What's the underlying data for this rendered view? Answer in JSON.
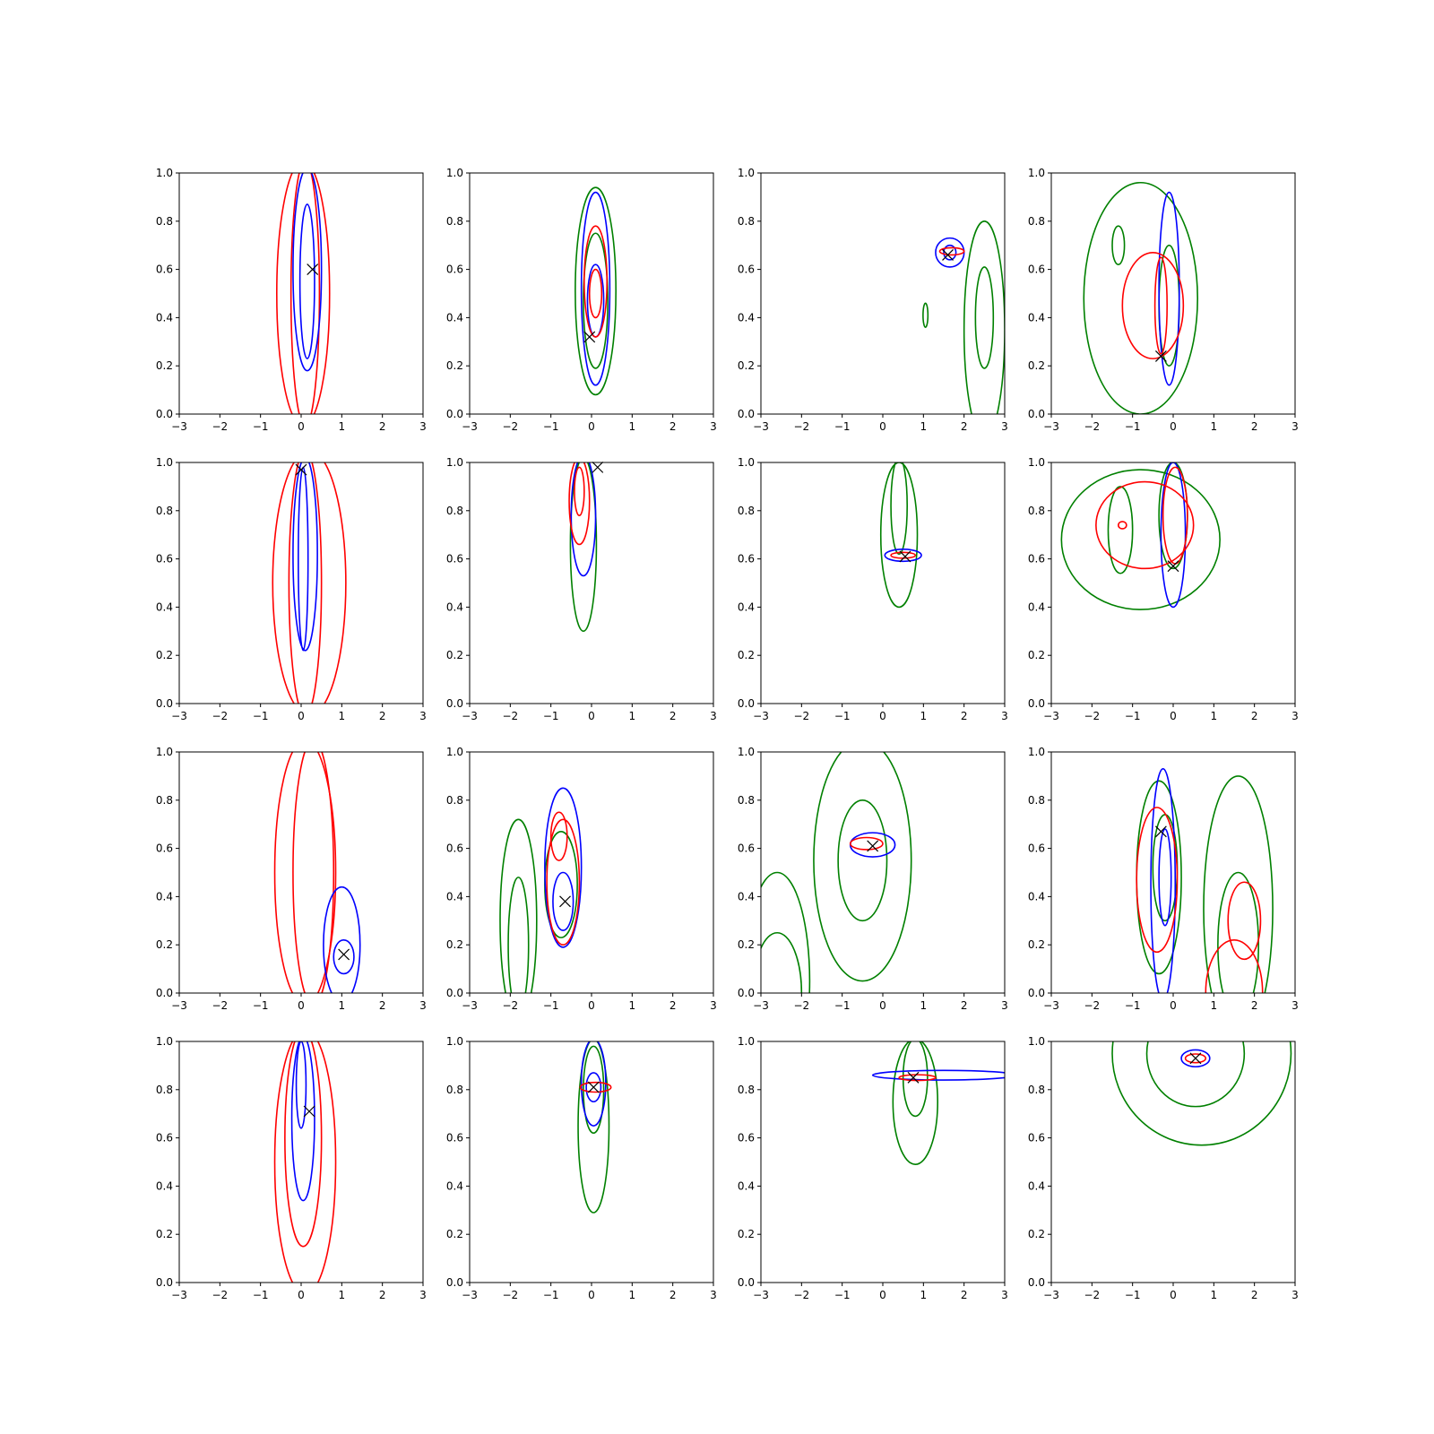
{
  "chart_data": {
    "type": "contour_grid",
    "rows": 4,
    "cols": 4,
    "xlim": [
      -3,
      3
    ],
    "ylim": [
      0.0,
      1.0
    ],
    "xticks": [
      "−3",
      "−2",
      "−1",
      "0",
      "1",
      "2",
      "3"
    ],
    "yticks": [
      "0.0",
      "0.2",
      "0.4",
      "0.6",
      "0.8",
      "1.0"
    ],
    "colors": {
      "red": "#ff0000",
      "blue": "#0000ff",
      "green": "#008000",
      "marker": "#000000"
    },
    "panels": [
      {
        "id": "r1c1",
        "marker": [
          0.28,
          0.6
        ],
        "contours": [
          {
            "color": "red",
            "c": [
              0.05,
              0.5
            ],
            "r": [
              0.65,
              0.55
            ]
          },
          {
            "color": "red",
            "c": [
              0.1,
              0.5
            ],
            "r": [
              0.35,
              0.55
            ]
          },
          {
            "color": "blue",
            "c": [
              0.15,
              0.6
            ],
            "r": [
              0.35,
              0.42
            ]
          },
          {
            "color": "blue",
            "c": [
              0.15,
              0.55
            ],
            "r": [
              0.18,
              0.32
            ]
          }
        ]
      },
      {
        "id": "r1c2",
        "marker": [
          -0.05,
          0.32
        ],
        "contours": [
          {
            "color": "green",
            "c": [
              0.1,
              0.51
            ],
            "r": [
              0.5,
              0.43
            ]
          },
          {
            "color": "green",
            "c": [
              0.1,
              0.47
            ],
            "r": [
              0.3,
              0.28
            ]
          },
          {
            "color": "blue",
            "c": [
              0.1,
              0.52
            ],
            "r": [
              0.35,
              0.4
            ]
          },
          {
            "color": "blue",
            "c": [
              0.1,
              0.47
            ],
            "r": [
              0.2,
              0.15
            ]
          },
          {
            "color": "red",
            "c": [
              0.1,
              0.55
            ],
            "r": [
              0.28,
              0.23
            ]
          },
          {
            "color": "red",
            "c": [
              0.1,
              0.5
            ],
            "r": [
              0.15,
              0.1
            ]
          }
        ]
      },
      {
        "id": "r1c3",
        "marker": [
          1.6,
          0.66
        ],
        "contours": [
          {
            "color": "green",
            "c": [
              2.5,
              0.35
            ],
            "r": [
              0.5,
              0.45
            ]
          },
          {
            "color": "green",
            "c": [
              2.5,
              0.4
            ],
            "r": [
              0.22,
              0.21
            ]
          },
          {
            "color": "green",
            "c": [
              1.05,
              0.41
            ],
            "r": [
              0.06,
              0.05
            ]
          },
          {
            "color": "blue",
            "c": [
              1.65,
              0.67
            ],
            "r": [
              0.35,
              0.06
            ]
          },
          {
            "color": "blue",
            "c": [
              1.65,
              0.67
            ],
            "r": [
              0.15,
              0.03
            ]
          },
          {
            "color": "red",
            "c": [
              1.7,
              0.675
            ],
            "r": [
              0.3,
              0.015
            ]
          }
        ]
      },
      {
        "id": "r1c4",
        "marker": [
          -0.3,
          0.24
        ],
        "contours": [
          {
            "color": "green",
            "c": [
              -0.8,
              0.48
            ],
            "r": [
              1.4,
              0.48
            ]
          },
          {
            "color": "green",
            "c": [
              -1.35,
              0.7
            ],
            "r": [
              0.15,
              0.08
            ]
          },
          {
            "color": "green",
            "c": [
              -0.1,
              0.45
            ],
            "r": [
              0.25,
              0.25
            ]
          },
          {
            "color": "blue",
            "c": [
              -0.1,
              0.52
            ],
            "r": [
              0.25,
              0.4
            ]
          },
          {
            "color": "red",
            "c": [
              -0.5,
              0.45
            ],
            "r": [
              0.75,
              0.22
            ]
          },
          {
            "color": "red",
            "c": [
              -0.3,
              0.45
            ],
            "r": [
              0.15,
              0.2
            ]
          }
        ]
      },
      {
        "id": "r2c1",
        "marker": [
          0.0,
          0.97
        ],
        "contours": [
          {
            "color": "red",
            "c": [
              0.2,
              0.5
            ],
            "r": [
              0.9,
              0.55
            ]
          },
          {
            "color": "red",
            "c": [
              0.1,
              0.5
            ],
            "r": [
              0.4,
              0.55
            ]
          },
          {
            "color": "blue",
            "c": [
              0.1,
              0.62
            ],
            "r": [
              0.3,
              0.4
            ]
          },
          {
            "color": "blue",
            "c": [
              0.05,
              0.6
            ],
            "r": [
              0.12,
              0.38
            ]
          }
        ]
      },
      {
        "id": "r2c2",
        "marker": [
          0.15,
          0.98
        ],
        "contours": [
          {
            "color": "green",
            "c": [
              -0.2,
              0.66
            ],
            "r": [
              0.32,
              0.36
            ]
          },
          {
            "color": "blue",
            "c": [
              -0.2,
              0.78
            ],
            "r": [
              0.3,
              0.25
            ]
          },
          {
            "color": "red",
            "c": [
              -0.3,
              0.84
            ],
            "r": [
              0.25,
              0.18
            ]
          },
          {
            "color": "red",
            "c": [
              -0.3,
              0.88
            ],
            "r": [
              0.12,
              0.1
            ]
          }
        ]
      },
      {
        "id": "r2c3",
        "marker": [
          0.55,
          0.61
        ],
        "contours": [
          {
            "color": "green",
            "c": [
              0.4,
              0.7
            ],
            "r": [
              0.45,
              0.3
            ]
          },
          {
            "color": "green",
            "c": [
              0.4,
              0.82
            ],
            "r": [
              0.2,
              0.2
            ]
          },
          {
            "color": "blue",
            "c": [
              0.5,
              0.615
            ],
            "r": [
              0.45,
              0.025
            ]
          },
          {
            "color": "red",
            "c": [
              0.5,
              0.615
            ],
            "r": [
              0.3,
              0.012
            ]
          }
        ]
      },
      {
        "id": "r2c4",
        "marker": [
          0.0,
          0.57
        ],
        "contours": [
          {
            "color": "green",
            "c": [
              -0.8,
              0.68
            ],
            "r": [
              1.95,
              0.29
            ]
          },
          {
            "color": "green",
            "c": [
              -1.3,
              0.72
            ],
            "r": [
              0.3,
              0.18
            ]
          },
          {
            "color": "green",
            "c": [
              0.0,
              0.78
            ],
            "r": [
              0.35,
              0.22
            ]
          },
          {
            "color": "blue",
            "c": [
              0.0,
              0.7
            ],
            "r": [
              0.3,
              0.3
            ]
          },
          {
            "color": "red",
            "c": [
              -0.7,
              0.74
            ],
            "r": [
              1.2,
              0.18
            ]
          },
          {
            "color": "red",
            "c": [
              -1.25,
              0.74
            ],
            "r": [
              0.1,
              0.015
            ]
          },
          {
            "color": "red",
            "c": [
              0.05,
              0.78
            ],
            "r": [
              0.3,
              0.2
            ]
          }
        ]
      },
      {
        "id": "r3c1",
        "marker": [
          1.05,
          0.16
        ],
        "contours": [
          {
            "color": "red",
            "c": [
              0.1,
              0.5
            ],
            "r": [
              0.75,
              0.55
            ]
          },
          {
            "color": "red",
            "c": [
              0.3,
              0.5
            ],
            "r": [
              0.5,
              0.55
            ]
          },
          {
            "color": "blue",
            "c": [
              1.0,
              0.2
            ],
            "r": [
              0.45,
              0.24
            ]
          },
          {
            "color": "blue",
            "c": [
              1.05,
              0.15
            ],
            "r": [
              0.25,
              0.07
            ]
          }
        ]
      },
      {
        "id": "r3c2",
        "marker": [
          -0.65,
          0.38
        ],
        "contours": [
          {
            "color": "green",
            "c": [
              -1.8,
              0.3
            ],
            "r": [
              0.45,
              0.42
            ]
          },
          {
            "color": "green",
            "c": [
              -1.8,
              0.2
            ],
            "r": [
              0.25,
              0.28
            ]
          },
          {
            "color": "green",
            "c": [
              -0.75,
              0.45
            ],
            "r": [
              0.4,
              0.22
            ]
          },
          {
            "color": "blue",
            "c": [
              -0.7,
              0.52
            ],
            "r": [
              0.45,
              0.33
            ]
          },
          {
            "color": "blue",
            "c": [
              -0.7,
              0.38
            ],
            "r": [
              0.25,
              0.12
            ]
          },
          {
            "color": "red",
            "c": [
              -0.7,
              0.46
            ],
            "r": [
              0.4,
              0.26
            ]
          },
          {
            "color": "red",
            "c": [
              -0.8,
              0.65
            ],
            "r": [
              0.2,
              0.1
            ]
          }
        ]
      },
      {
        "id": "r3c3",
        "marker": [
          -0.25,
          0.61
        ],
        "contours": [
          {
            "color": "green",
            "c": [
              -0.5,
              0.55
            ],
            "r": [
              1.2,
              0.5
            ]
          },
          {
            "color": "green",
            "c": [
              -0.5,
              0.55
            ],
            "r": [
              0.6,
              0.25
            ]
          },
          {
            "color": "green",
            "c": [
              -2.6,
              0.05
            ],
            "r": [
              0.8,
              0.45
            ]
          },
          {
            "color": "green",
            "c": [
              -2.6,
              0.0
            ],
            "r": [
              0.6,
              0.25
            ]
          },
          {
            "color": "blue",
            "c": [
              -0.25,
              0.615
            ],
            "r": [
              0.55,
              0.05
            ]
          },
          {
            "color": "red",
            "c": [
              -0.4,
              0.62
            ],
            "r": [
              0.4,
              0.025
            ]
          }
        ]
      },
      {
        "id": "r3c4",
        "marker": [
          -0.3,
          0.67
        ],
        "contours": [
          {
            "color": "green",
            "c": [
              -0.35,
              0.48
            ],
            "r": [
              0.55,
              0.4
            ]
          },
          {
            "color": "green",
            "c": [
              -0.2,
              0.52
            ],
            "r": [
              0.3,
              0.22
            ]
          },
          {
            "color": "green",
            "c": [
              1.6,
              0.35
            ],
            "r": [
              0.85,
              0.55
            ]
          },
          {
            "color": "green",
            "c": [
              1.6,
              0.2
            ],
            "r": [
              0.5,
              0.3
            ]
          },
          {
            "color": "blue",
            "c": [
              -0.25,
              0.45
            ],
            "r": [
              0.3,
              0.48
            ]
          },
          {
            "color": "blue",
            "c": [
              -0.2,
              0.48
            ],
            "r": [
              0.15,
              0.2
            ]
          },
          {
            "color": "red",
            "c": [
              -0.4,
              0.47
            ],
            "r": [
              0.5,
              0.3
            ]
          },
          {
            "color": "red",
            "c": [
              1.75,
              0.3
            ],
            "r": [
              0.4,
              0.16
            ]
          },
          {
            "color": "red",
            "c": [
              1.5,
              0.0
            ],
            "r": [
              0.7,
              0.22
            ]
          }
        ]
      },
      {
        "id": "r4c1",
        "marker": [
          0.2,
          0.71
        ],
        "contours": [
          {
            "color": "red",
            "c": [
              0.1,
              0.5
            ],
            "r": [
              0.75,
              0.55
            ]
          },
          {
            "color": "red",
            "c": [
              0.05,
              0.6
            ],
            "r": [
              0.45,
              0.45
            ]
          },
          {
            "color": "blue",
            "c": [
              0.05,
              0.68
            ],
            "r": [
              0.28,
              0.34
            ]
          },
          {
            "color": "blue",
            "c": [
              0.0,
              0.82
            ],
            "r": [
              0.12,
              0.18
            ]
          }
        ]
      },
      {
        "id": "r4c2",
        "marker": [
          0.05,
          0.81
        ],
        "contours": [
          {
            "color": "green",
            "c": [
              0.05,
              0.65
            ],
            "r": [
              0.38,
              0.36
            ]
          },
          {
            "color": "green",
            "c": [
              0.05,
              0.8
            ],
            "r": [
              0.25,
              0.18
            ]
          },
          {
            "color": "blue",
            "c": [
              0.05,
              0.83
            ],
            "r": [
              0.3,
              0.18
            ]
          },
          {
            "color": "blue",
            "c": [
              0.05,
              0.81
            ],
            "r": [
              0.18,
              0.06
            ]
          },
          {
            "color": "red",
            "c": [
              0.1,
              0.81
            ],
            "r": [
              0.38,
              0.02
            ]
          }
        ]
      },
      {
        "id": "r4c3",
        "marker": [
          0.75,
          0.85
        ],
        "contours": [
          {
            "color": "green",
            "c": [
              0.8,
              0.75
            ],
            "r": [
              0.55,
              0.26
            ]
          },
          {
            "color": "green",
            "c": [
              0.8,
              0.85
            ],
            "r": [
              0.3,
              0.16
            ]
          },
          {
            "color": "blue",
            "c": [
              1.5,
              0.86
            ],
            "r": [
              1.75,
              0.02
            ]
          },
          {
            "color": "red",
            "c": [
              0.85,
              0.85
            ],
            "r": [
              0.45,
              0.012
            ]
          }
        ]
      },
      {
        "id": "r4c4",
        "marker": [
          0.55,
          0.93
        ],
        "contours": [
          {
            "color": "green",
            "c": [
              0.7,
              0.95
            ],
            "r": [
              2.2,
              0.38
            ]
          },
          {
            "color": "green",
            "c": [
              0.55,
              0.95
            ],
            "r": [
              1.2,
              0.22
            ]
          },
          {
            "color": "blue",
            "c": [
              0.55,
              0.93
            ],
            "r": [
              0.35,
              0.035
            ]
          },
          {
            "color": "red",
            "c": [
              0.55,
              0.93
            ],
            "r": [
              0.25,
              0.018
            ]
          }
        ]
      }
    ]
  }
}
